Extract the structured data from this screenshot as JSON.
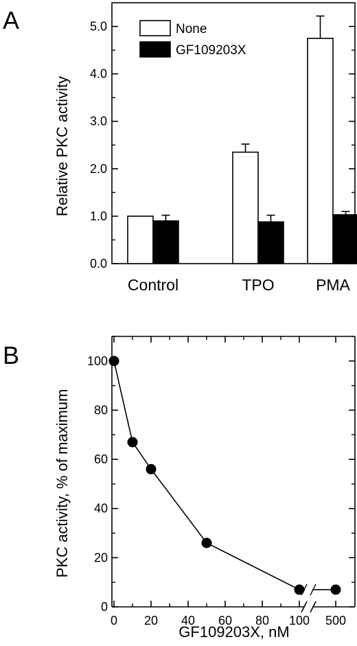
{
  "panels": {
    "a": {
      "letter": "A"
    },
    "b": {
      "letter": "B"
    }
  },
  "chart_data": [
    {
      "type": "bar",
      "panel": "A",
      "title": "",
      "xlabel": "",
      "ylabel": "Relative PKC activity",
      "ylim": [
        0,
        5.5
      ],
      "yticks": [
        0,
        1,
        2,
        3,
        4,
        5
      ],
      "ytick_labels": [
        "0.0",
        "1.0",
        "2.0",
        "3.0",
        "4.0",
        "5.0"
      ],
      "categories": [
        "Control",
        "TPO",
        "PMA"
      ],
      "series": [
        {
          "name": "None",
          "color": "#ffffff",
          "values": [
            1.0,
            2.35,
            4.75
          ],
          "errors": [
            0.0,
            0.17,
            0.47
          ]
        },
        {
          "name": "GF109203X",
          "color": "#000000",
          "values": [
            0.9,
            0.88,
            1.03
          ],
          "errors": [
            0.12,
            0.14,
            0.07
          ]
        }
      ],
      "legend": "top-left",
      "grid": false
    },
    {
      "type": "line",
      "panel": "B",
      "title": "",
      "xlabel": "GF109203X, nM",
      "ylabel": "PKC activity, % of maximum",
      "xlim": [
        0,
        130
      ],
      "ylim": [
        0,
        110
      ],
      "axis_break": "between 100 and 500",
      "xticks": [
        0,
        20,
        40,
        60,
        80,
        100,
        500
      ],
      "xtick_labels": [
        "0",
        "20",
        "40",
        "60",
        "80",
        "100",
        "500"
      ],
      "yticks": [
        0,
        20,
        40,
        60,
        80,
        100
      ],
      "ytick_labels": [
        "0",
        "20",
        "40",
        "60",
        "80",
        "100"
      ],
      "x": [
        0,
        10,
        20,
        50,
        100,
        500
      ],
      "y": [
        100,
        67,
        56,
        26,
        7,
        7
      ],
      "grid": false
    }
  ]
}
